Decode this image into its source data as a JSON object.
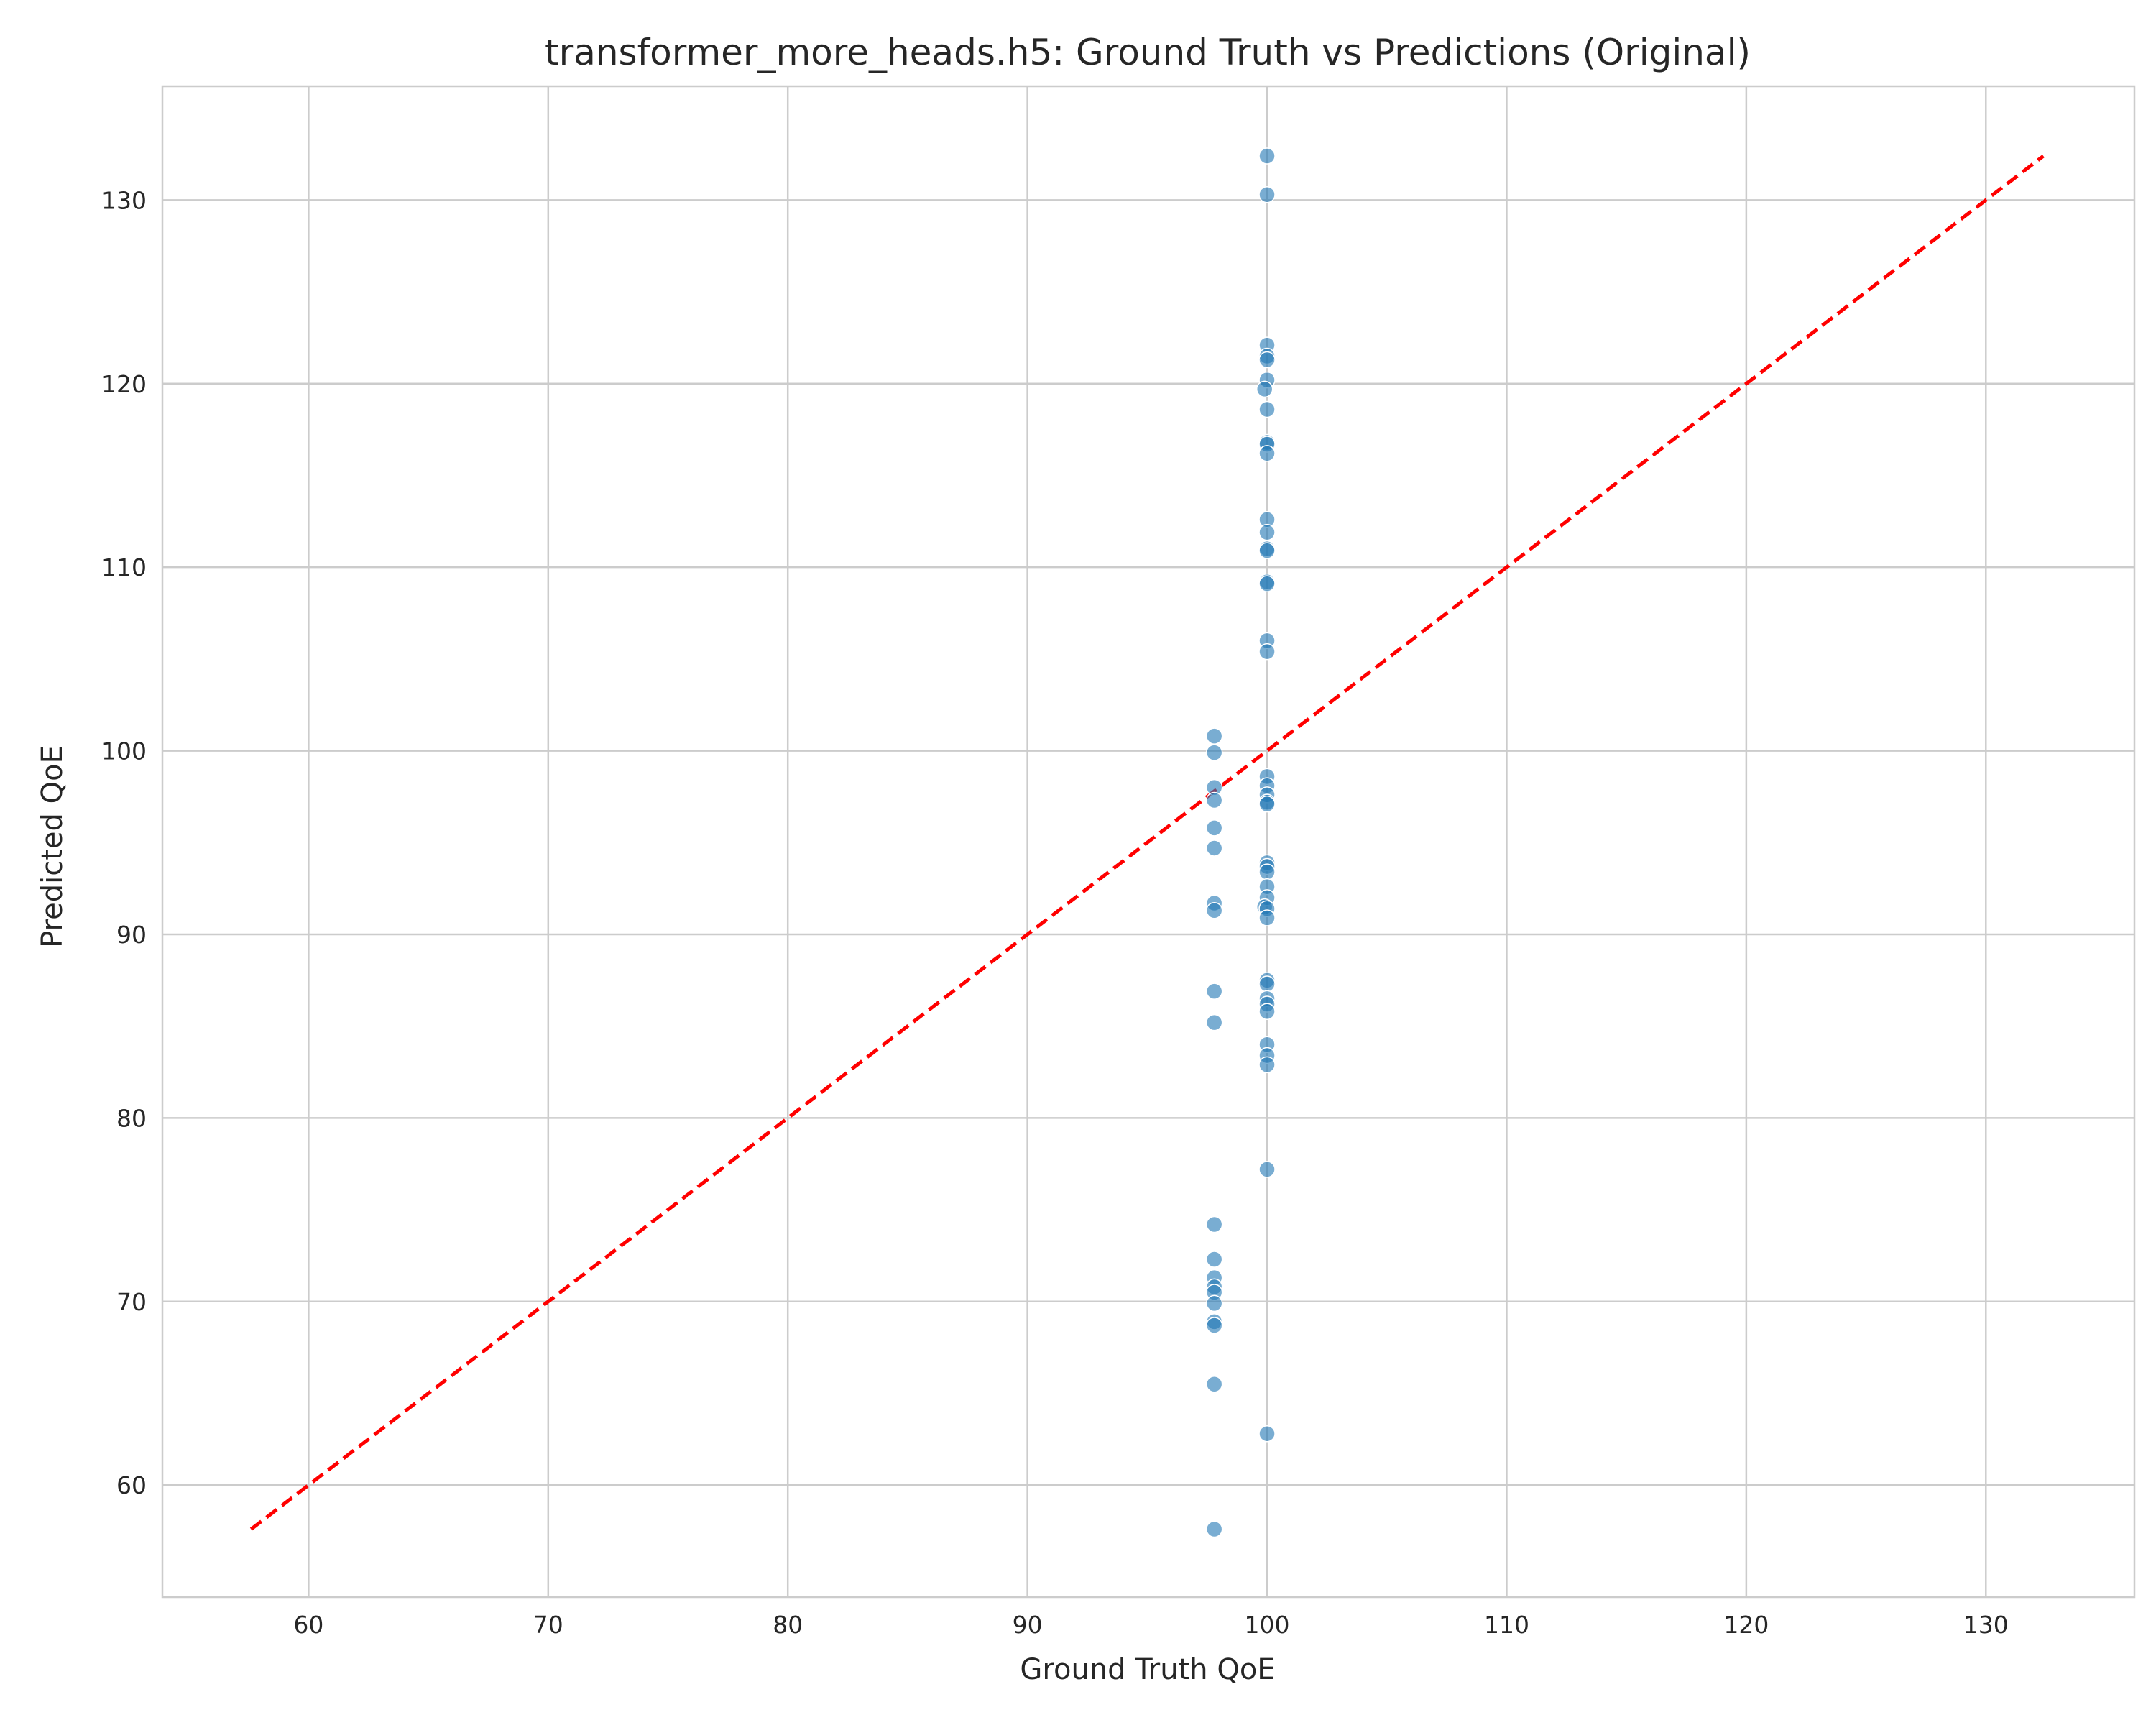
{
  "chart_data": {
    "type": "scatter",
    "title": "transformer_more_heads.h5: Ground Truth vs Predictions (Original)",
    "xlabel": "Ground Truth QoE",
    "ylabel": "Predicted QoE",
    "xlim": [
      53.9,
      136.2
    ],
    "ylim": [
      53.9,
      136.2
    ],
    "xticks": [
      60,
      70,
      80,
      90,
      100,
      110,
      120,
      130
    ],
    "yticks": [
      60,
      70,
      80,
      90,
      100,
      110,
      120,
      130
    ],
    "grid": true,
    "reference_line": {
      "style": "dashed",
      "color": "#ff0000",
      "from": [
        57.6,
        57.6
      ],
      "to": [
        132.4,
        132.4
      ]
    },
    "point_color": "#1f77b4",
    "points": [
      [
        97.8,
        100.8
      ],
      [
        97.8,
        99.9
      ],
      [
        97.8,
        98.0
      ],
      [
        97.8,
        97.3
      ],
      [
        97.8,
        95.8
      ],
      [
        97.8,
        94.7
      ],
      [
        97.8,
        91.7
      ],
      [
        97.8,
        91.3
      ],
      [
        97.8,
        86.9
      ],
      [
        97.8,
        85.2
      ],
      [
        97.8,
        74.2
      ],
      [
        97.8,
        72.3
      ],
      [
        97.8,
        71.3
      ],
      [
        97.8,
        70.8
      ],
      [
        97.8,
        70.5
      ],
      [
        97.8,
        69.9
      ],
      [
        97.8,
        68.9
      ],
      [
        97.8,
        68.7
      ],
      [
        97.8,
        65.5
      ],
      [
        97.8,
        57.6
      ],
      [
        100.0,
        132.4
      ],
      [
        100.0,
        130.3
      ],
      [
        100.0,
        122.1
      ],
      [
        100.0,
        121.5
      ],
      [
        100.0,
        121.3
      ],
      [
        100.0,
        120.2
      ],
      [
        99.9,
        119.7
      ],
      [
        100.0,
        118.6
      ],
      [
        100.0,
        116.8
      ],
      [
        100.0,
        116.7
      ],
      [
        100.0,
        116.2
      ],
      [
        100.0,
        112.6
      ],
      [
        100.0,
        111.9
      ],
      [
        100.0,
        111.0
      ],
      [
        100.0,
        110.9
      ],
      [
        100.0,
        109.2
      ],
      [
        100.0,
        109.1
      ],
      [
        100.0,
        106.0
      ],
      [
        100.0,
        105.4
      ],
      [
        100.0,
        98.6
      ],
      [
        100.0,
        98.1
      ],
      [
        100.0,
        97.6
      ],
      [
        100.0,
        97.2
      ],
      [
        100.0,
        97.1
      ],
      [
        100.0,
        93.9
      ],
      [
        100.0,
        93.7
      ],
      [
        100.0,
        93.4
      ],
      [
        100.0,
        92.6
      ],
      [
        100.0,
        92.0
      ],
      [
        99.9,
        91.5
      ],
      [
        100.0,
        91.4
      ],
      [
        100.0,
        90.9
      ],
      [
        100.0,
        87.5
      ],
      [
        100.0,
        87.3
      ],
      [
        100.0,
        86.5
      ],
      [
        100.0,
        86.2
      ],
      [
        100.0,
        85.8
      ],
      [
        100.0,
        84.0
      ],
      [
        100.0,
        83.4
      ],
      [
        100.0,
        82.9
      ],
      [
        100.0,
        77.2
      ],
      [
        100.0,
        62.8
      ]
    ]
  }
}
